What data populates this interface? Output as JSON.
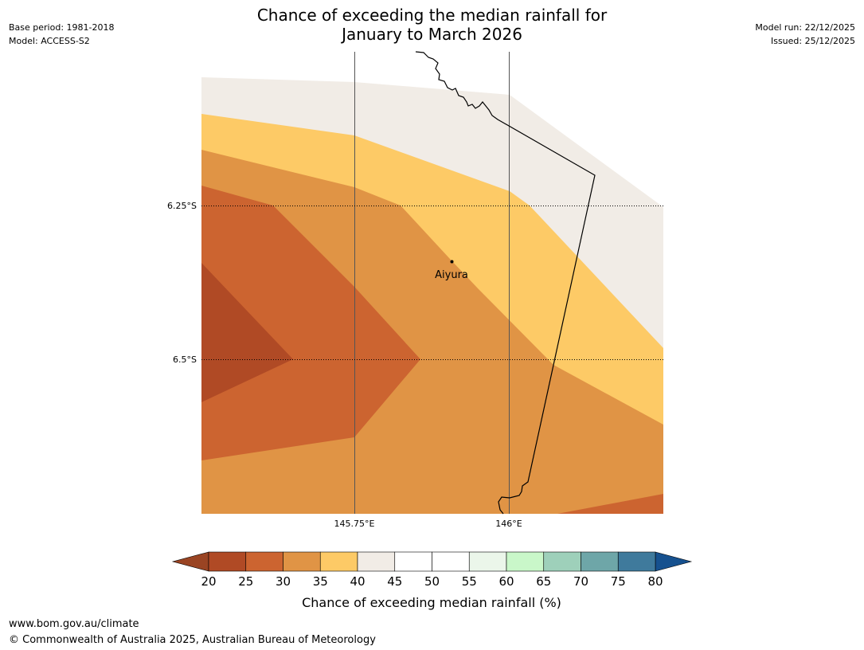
{
  "header": {
    "base_period": "Base period: 1981-2018",
    "model": "Model: ACCESS-S2",
    "model_run": "Model run: 22/12/2025",
    "issued": "Issued: 25/12/2025",
    "title_line1": "Chance of exceeding the median rainfall for",
    "title_line2": "January to March 2026"
  },
  "map": {
    "lat_labels": [
      "6.25°S",
      "6.5°S"
    ],
    "lon_labels": [
      "145.75°E",
      "146°E"
    ],
    "place": "Aiyura"
  },
  "legend": {
    "ticks": [
      "20",
      "25",
      "30",
      "35",
      "40",
      "45",
      "50",
      "55",
      "60",
      "65",
      "70",
      "75",
      "80"
    ],
    "label": "Chance of exceeding median rainfall (%)",
    "below_color": "#9a4423",
    "above_color": "#16518f",
    "colors": [
      "#b04a25",
      "#cc6430",
      "#e09445",
      "#fdca66",
      "#f1ece6",
      "#ffffff",
      "#ffffff",
      "#ebf6ea",
      "#c9f7c9",
      "#9ed0ba",
      "#6ea6a8",
      "#3f7a9c"
    ]
  },
  "footer": {
    "url": "www.bom.gov.au/climate",
    "copyright": "© Commonwealth of Australia 2025, Australian Bureau of Meteorology"
  }
}
